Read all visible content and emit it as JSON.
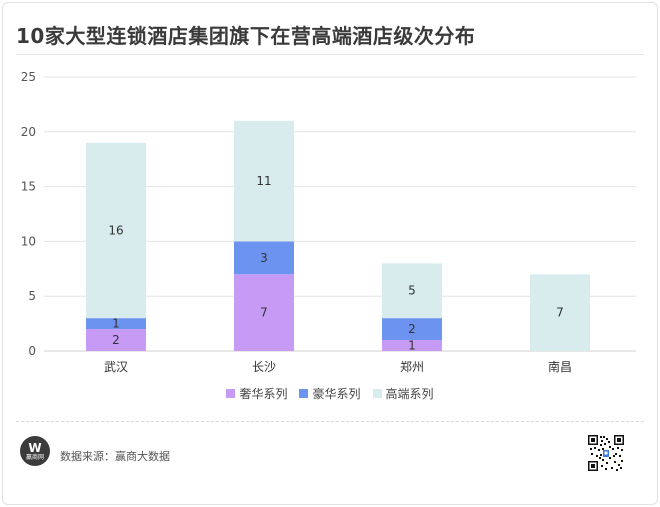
{
  "title": "10家大型连锁酒店集团旗下在营高端酒店级次分布",
  "source": "数据来源：赢商大数据",
  "logo": {
    "mark": "W",
    "text": "赢商网"
  },
  "colors": {
    "luxury": "#c79af5",
    "deluxe": "#6d93f0",
    "upscale": "#d8ecee"
  },
  "chart_data": {
    "type": "bar",
    "stacked": true,
    "categories": [
      "武汉",
      "长沙",
      "郑州",
      "南昌"
    ],
    "series": [
      {
        "name": "奢华系列",
        "values": [
          2,
          7,
          1,
          0
        ],
        "color": "#c79af5"
      },
      {
        "name": "豪华系列",
        "values": [
          1,
          3,
          2,
          0
        ],
        "color": "#6d93f0"
      },
      {
        "name": "高端系列",
        "values": [
          16,
          11,
          5,
          7
        ],
        "color": "#d8ecee"
      }
    ],
    "yticks": [
      0,
      5,
      10,
      15,
      20,
      25
    ],
    "ylim": [
      0,
      25
    ],
    "grid": true,
    "legend_position": "bottom"
  }
}
